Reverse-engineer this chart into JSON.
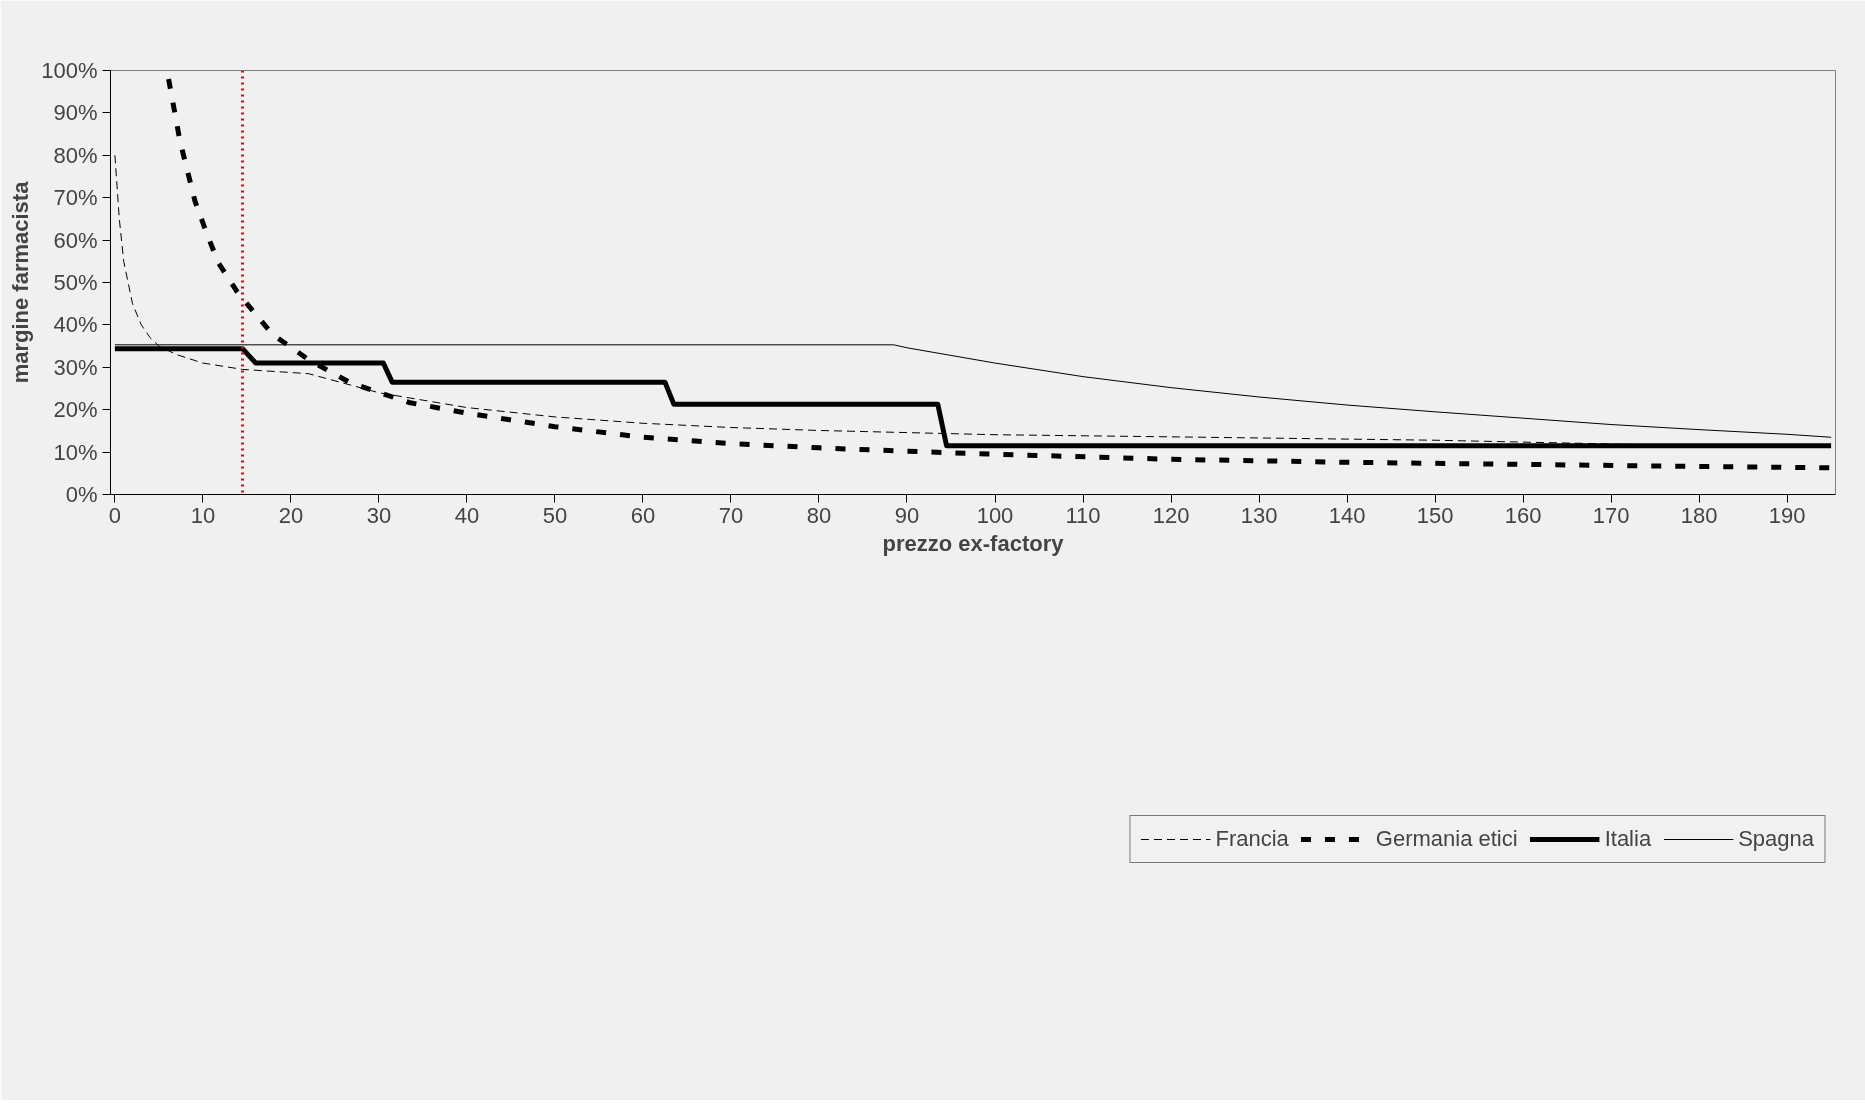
{
  "chart_data": {
    "type": "line",
    "xlabel": "prezzo ex-factory",
    "ylabel": "margine farmacista",
    "xlim": [
      -0.5,
      195.5
    ],
    "ylim": [
      0,
      100
    ],
    "xticks": [
      0,
      10,
      20,
      30,
      40,
      50,
      60,
      70,
      80,
      90,
      100,
      110,
      120,
      130,
      140,
      150,
      160,
      170,
      180,
      190
    ],
    "yticks": [
      {
        "value": 0,
        "label": "0%"
      },
      {
        "value": 10,
        "label": "10%"
      },
      {
        "value": 20,
        "label": "20%"
      },
      {
        "value": 30,
        "label": "30%"
      },
      {
        "value": 40,
        "label": "40%"
      },
      {
        "value": 50,
        "label": "50%"
      },
      {
        "value": 60,
        "label": "60%"
      },
      {
        "value": 70,
        "label": "70%"
      },
      {
        "value": 80,
        "label": "80%"
      },
      {
        "value": 90,
        "label": "90%"
      },
      {
        "value": 100,
        "label": "100%"
      }
    ],
    "grid": false,
    "legend": "bottom",
    "marker": "none",
    "series": [
      {
        "name": "Francia",
        "color": "#000000",
        "line_style": "dashed",
        "x": [
          0,
          0.5,
          1,
          2,
          3,
          4,
          5,
          7,
          10,
          14.5,
          22,
          30,
          40,
          50,
          60,
          70,
          80,
          90,
          100,
          120,
          150,
          175,
          195
        ],
        "values": [
          80,
          65,
          55,
          45,
          40,
          37,
          35,
          33,
          31,
          29.5,
          28.5,
          24,
          20.5,
          18.3,
          16.8,
          15.8,
          15.1,
          14.6,
          14.1,
          13.6,
          12.8,
          11.7,
          11.5
        ]
      },
      {
        "name": "Germania etici",
        "color": "#000000",
        "line_style": "dashed",
        "x": [
          6.1,
          7.4,
          9.1,
          10.5,
          11.8,
          13.9,
          15.2,
          17.9,
          22,
          26.7,
          33.4,
          40.2,
          50,
          60,
          70,
          80,
          90,
          100,
          120,
          140,
          160,
          180,
          195
        ],
        "values": [
          98,
          83.3,
          69.2,
          61.2,
          54.5,
          47.8,
          44.5,
          37.8,
          31.8,
          26.4,
          21.7,
          19.1,
          16,
          13.5,
          12,
          11,
          10.2,
          9.5,
          8.3,
          7.6,
          7.1,
          6.6,
          6.3
        ]
      },
      {
        "name": "Italia",
        "color": "#000000",
        "line_style": "solid",
        "x": [
          0,
          14.5,
          16,
          30.5,
          31.5,
          62.5,
          63.5,
          93.5,
          94.5,
          195
        ],
        "values": [
          34.4,
          34.4,
          31,
          31,
          26.5,
          26.5,
          21.3,
          21.3,
          11.5,
          11.5
        ]
      },
      {
        "name": "Spagna",
        "color": "#000000",
        "line_style": "solid",
        "x": [
          0,
          88.5,
          90,
          100,
          110,
          120,
          130,
          140,
          150,
          160,
          170,
          180,
          190,
          195
        ],
        "values": [
          35.3,
          35.3,
          34.6,
          31,
          27.8,
          25.2,
          23,
          21.1,
          19.5,
          18,
          16.5,
          15.3,
          14.2,
          13.5
        ]
      }
    ],
    "ref_lines": [
      {
        "axis": "x",
        "value": 14.5,
        "color": "#ff0000",
        "line_style": "dotted"
      }
    ]
  }
}
